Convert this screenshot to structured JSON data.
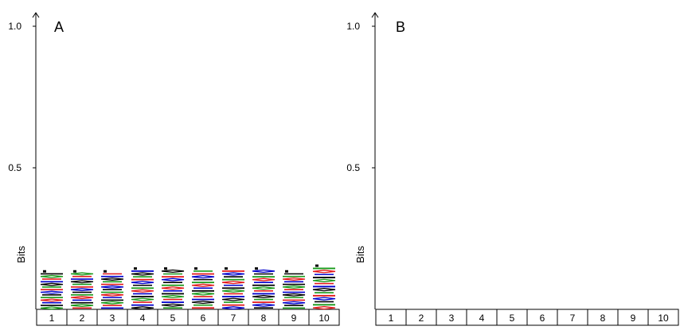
{
  "chart_data": [
    {
      "type": "bar",
      "title": "",
      "panel_label": "A",
      "ylabel": "Bits",
      "ylim": [
        0,
        1.0
      ],
      "yticks": [
        "0.5",
        "1.0"
      ],
      "ytick_values": [
        0.5,
        1.0
      ],
      "categories": [
        "1",
        "2",
        "3",
        "4",
        "5",
        "6",
        "7",
        "8",
        "9",
        "10"
      ],
      "values": [
        0.13,
        0.13,
        0.13,
        0.14,
        0.14,
        0.14,
        0.14,
        0.14,
        0.13,
        0.15
      ],
      "stack_colors": [
        "#000000",
        "#1a9a1a",
        "#e31a1c",
        "#0000cc"
      ]
    },
    {
      "type": "bar",
      "title": "",
      "panel_label": "B",
      "ylabel": "Bits",
      "ylim": [
        0,
        1.0
      ],
      "yticks": [
        "0.5",
        "1.0"
      ],
      "ytick_values": [
        0.5,
        1.0
      ],
      "categories": [
        "1",
        "2",
        "3",
        "4",
        "5",
        "6",
        "7",
        "8",
        "9",
        "10"
      ],
      "values": [
        0,
        0,
        0,
        0,
        0,
        0,
        0,
        0,
        0,
        0
      ],
      "stack_colors": [
        "#000000",
        "#1a9a1a",
        "#e31a1c",
        "#0000cc"
      ]
    }
  ]
}
